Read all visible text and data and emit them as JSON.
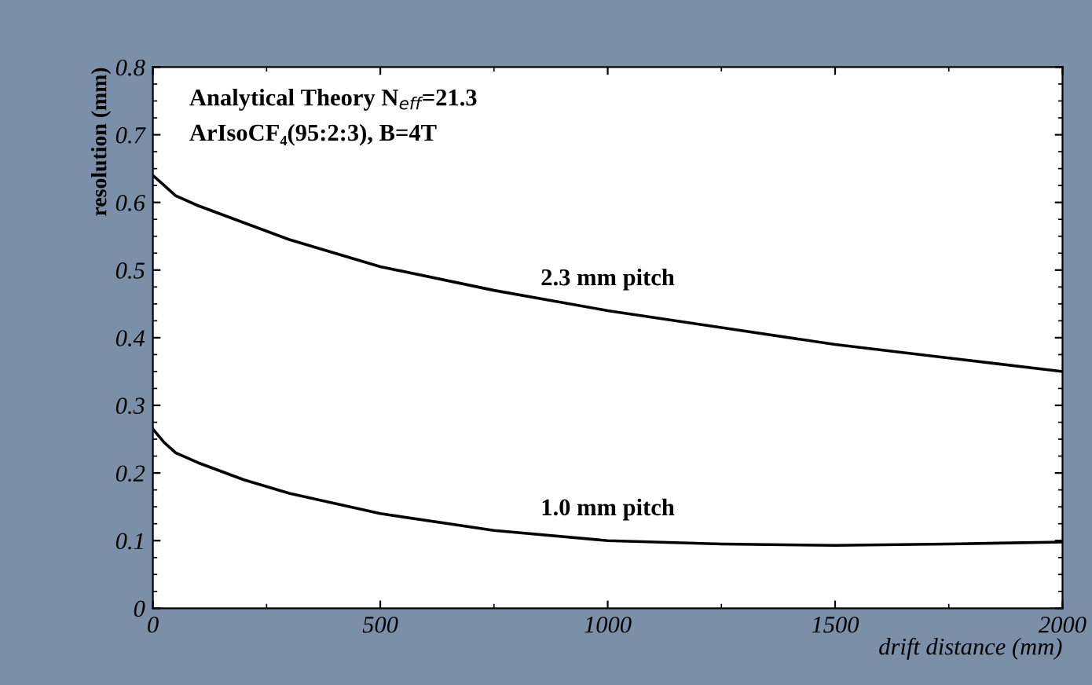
{
  "chart_data": {
    "type": "line",
    "xlabel": "drift distance (mm)",
    "ylabel": "resolution (mm)",
    "annotations": [
      "Analytical Theory N$_{eff}$=21.3",
      "ArIsoCF₄(95:2:3), B=4T"
    ],
    "x": [
      0,
      25,
      50,
      100,
      200,
      300,
      500,
      750,
      1000,
      1250,
      1500,
      1750,
      2000
    ],
    "series": [
      {
        "name": "2.3 mm pitch",
        "color": "#000000",
        "values": [
          0.64,
          0.625,
          0.61,
          0.595,
          0.57,
          0.545,
          0.505,
          0.47,
          0.44,
          0.415,
          0.39,
          0.37,
          0.35
        ]
      },
      {
        "name": "1.0 mm pitch",
        "color": "#000000",
        "values": [
          0.265,
          0.245,
          0.23,
          0.215,
          0.19,
          0.17,
          0.14,
          0.115,
          0.1,
          0.095,
          0.093,
          0.095,
          0.098
        ]
      }
    ],
    "xlim": [
      0,
      2000
    ],
    "ylim": [
      0,
      0.8
    ],
    "xticks": [
      0,
      500,
      1000,
      1500,
      2000
    ],
    "yticks": [
      0,
      0.1,
      0.2,
      0.3,
      0.4,
      0.5,
      0.6,
      0.7,
      0.8
    ],
    "grid": false,
    "legend": false,
    "marker": "none",
    "line_style": "solid"
  }
}
